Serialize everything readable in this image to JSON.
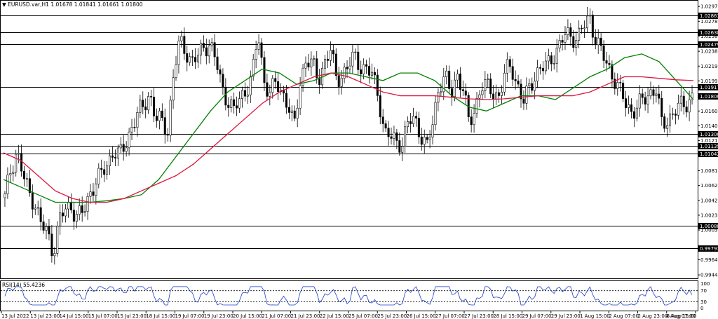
{
  "header": {
    "symbol_line": "EURUSD.var,H1  1.01678 1.01841 1.01661 1.01800"
  },
  "rsi_panel": {
    "label": "RSI(14) 55.4236",
    "scale_labels": [
      "100",
      "70",
      "30",
      "0"
    ],
    "current_value": 55.4236
  },
  "chart_data": {
    "type": "candlestick",
    "symbol": "EURUSD.var",
    "timeframe": "H1",
    "ohlc_current": {
      "open": 1.01678,
      "high": 1.01841,
      "low": 1.01661,
      "close": 1.018
    },
    "price_axis_labels": [
      "1.02975",
      "1.02780",
      "1.02585",
      "1.02385",
      "1.02190",
      "1.01995",
      "1.01600",
      "1.01405",
      "1.01210",
      "1.00815",
      "1.00620",
      "1.00425",
      "1.00230",
      "1.00035",
      "0.99645",
      "0.99445"
    ],
    "ylim": [
      0.994,
      1.0305
    ],
    "horizontal_levels": [
      {
        "value": 1.02861,
        "label": "1.02861"
      },
      {
        "value": 1.02638,
        "label": "1.02638"
      },
      {
        "value": 1.02479,
        "label": "1.02479"
      },
      {
        "value": 1.01917,
        "label": "1.01917"
      },
      {
        "value": 1.013,
        "label": "1.01300"
      },
      {
        "value": 1.01139,
        "label": "1.01139"
      },
      {
        "value": 1.01042,
        "label": "1.01042"
      },
      {
        "value": 1.00088,
        "label": "1.00088"
      },
      {
        "value": 0.99793,
        "label": "0.99793"
      }
    ],
    "current_price": {
      "value": 1.018,
      "label": "1.01800"
    },
    "time_axis_labels": [
      "13 Jul 2022",
      "13 Jul 23:00",
      "14 Jul 15:00",
      "15 Jul 07:00",
      "15 Jul 23:00",
      "18 Jul 15:00",
      "19 Jul 07:00",
      "19 Jul 23:00",
      "20 Jul 15:00",
      "21 Jul 07:00",
      "21 Jul 23:00",
      "22 Jul 15:00",
      "25 Jul 07:00",
      "25 Jul 23:00",
      "26 Jul 15:00",
      "27 Jul 07:00",
      "27 Jul 23:00",
      "28 Jul 15:00",
      "29 Jul 07:00",
      "29 Jul 23:00",
      "1 Aug 15:00",
      "2 Aug 07:00",
      "2 Aug 23:00",
      "3 Aug 15:00",
      "4 Aug 07:00"
    ],
    "close_path": [
      1.0045,
      1.0085,
      1.0108,
      1.0075,
      1.0052,
      1.004,
      1.001,
      1.0,
      0.9975,
      1.0015,
      1.003,
      1.0035,
      1.0022,
      1.0025,
      1.005,
      1.0068,
      1.0075,
      1.009,
      1.011,
      1.01,
      1.0115,
      1.014,
      1.0155,
      1.0165,
      1.0185,
      1.015,
      1.0145,
      1.0135,
      1.021,
      1.025,
      1.024,
      1.0225,
      1.023,
      1.0245,
      1.025,
      1.0225,
      1.019,
      1.0175,
      1.016,
      1.0175,
      1.019,
      1.0205,
      1.026,
      1.02,
      1.0185,
      1.0195,
      1.0185,
      1.017,
      1.0135,
      1.02,
      1.023,
      1.022,
      1.02,
      1.0225,
      1.024,
      1.02,
      1.021,
      1.022,
      1.023,
      1.022,
      1.0215,
      1.0205,
      1.018,
      1.013,
      1.0125,
      1.012,
      1.012,
      1.0145,
      1.015,
      1.013,
      1.011,
      1.0145,
      1.0195,
      1.0205,
      1.018,
      1.021,
      1.019,
      1.014,
      1.0165,
      1.0195,
      1.019,
      1.0185,
      1.018,
      1.021,
      1.022,
      1.0195,
      1.017,
      1.019,
      1.021,
      1.0215,
      1.022,
      1.0235,
      1.0245,
      1.026,
      1.026,
      1.0255,
      1.027,
      1.0285,
      1.0255,
      1.0235,
      1.022,
      1.0205,
      1.0185,
      1.017,
      1.016,
      1.0165,
      1.0175,
      1.0185,
      1.019,
      1.014,
      1.015,
      1.016,
      1.0165,
      1.017,
      1.018
    ],
    "series": [
      {
        "name": "",
        "color": "#008000",
        "values": [
          1.007,
          1.006,
          1.005,
          1.004,
          1.004,
          1.004,
          1.0042,
          1.0045,
          1.005,
          1.007,
          1.01,
          1.013,
          1.016,
          1.0185,
          1.02,
          1.0215,
          1.021,
          1.0195,
          1.02,
          1.021,
          1.021,
          1.0205,
          1.02,
          1.021,
          1.021,
          1.02,
          1.018,
          1.0165,
          1.016,
          1.017,
          1.018,
          1.018,
          1.0175,
          1.019,
          1.0205,
          1.0215,
          1.023,
          1.0235,
          1.0225,
          1.02,
          1.0175
        ]
      },
      {
        "name": "",
        "color": "#dc143c",
        "values": [
          1.0105,
          1.0095,
          1.0075,
          1.0055,
          1.0045,
          1.004,
          1.004,
          1.0045,
          1.0055,
          1.0065,
          1.0075,
          1.009,
          1.011,
          1.013,
          1.015,
          1.017,
          1.0185,
          1.0195,
          1.0205,
          1.021,
          1.0205,
          1.0195,
          1.0185,
          1.018,
          1.018,
          1.018,
          1.0178,
          1.0176,
          1.0175,
          1.0176,
          1.0178,
          1.018,
          1.018,
          1.018,
          1.0185,
          1.0195,
          1.0205,
          1.0205,
          1.0203,
          1.0201,
          1.02
        ]
      }
    ],
    "rsi": {
      "period": 14,
      "value": 55.4236,
      "levels": [
        70,
        30
      ],
      "ylim": [
        0,
        100
      ]
    }
  }
}
